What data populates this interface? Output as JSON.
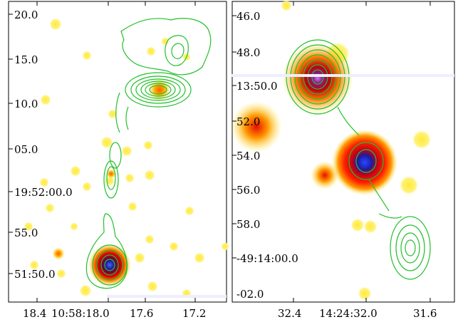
{
  "figure": {
    "panels": [
      {
        "y_ticks": [
          "20.0",
          "15.0",
          "10.0",
          "05.0",
          "19:52:00.0",
          "55.0",
          "51:50.0"
        ],
        "x_ticks": [
          "18.4",
          "10:58:18.0",
          "17.6",
          "17.2"
        ]
      },
      {
        "y_ticks": [
          "46.0",
          "48.0",
          "13:50.0",
          "52.0",
          "54.0",
          "56.0",
          "58.0",
          "-49:14:00.0",
          "-02.0"
        ],
        "x_ticks": [
          "32.4",
          "14:24:32.0",
          "31.6"
        ]
      }
    ],
    "colors": {
      "contour": "#22c02a",
      "heat_low": "#ffee44",
      "heat_mid": "#ff7a00",
      "heat_high": "#d40000",
      "peak": "#1a1aa8"
    }
  }
}
